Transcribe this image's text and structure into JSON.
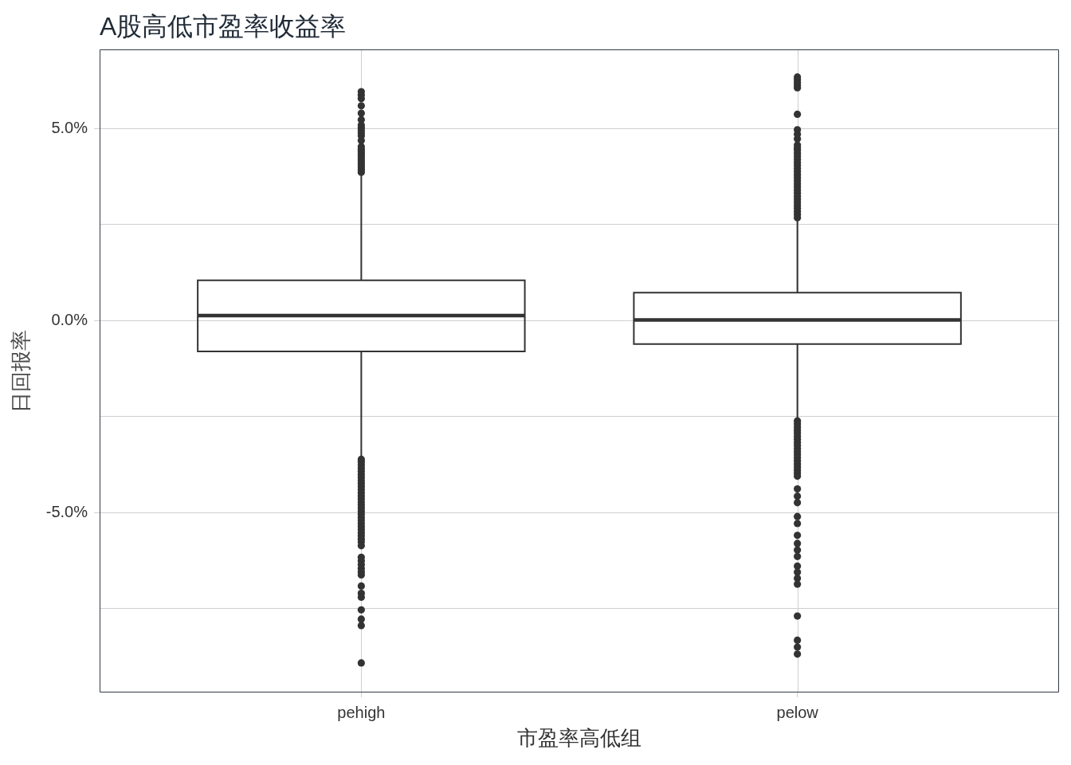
{
  "chart_data": {
    "type": "box",
    "title": "A股高低市盈率收益率",
    "xlabel": "市盈率高低组",
    "ylabel": "日回报率",
    "categories": [
      "pehigh",
      "pelow"
    ],
    "color": "#333333",
    "boxes": [
      {
        "low": -3.55,
        "q1": -0.8,
        "median": 0.13,
        "q3": 1.05,
        "high": 3.8,
        "outliers": [
          3.86,
          3.92,
          3.98,
          4.04,
          4.1,
          4.16,
          4.22,
          4.28,
          4.34,
          4.4,
          4.46,
          4.53,
          4.69,
          4.81,
          4.88,
          4.95,
          5.02,
          5.09,
          5.23,
          5.4,
          5.59,
          5.78,
          5.87,
          5.96,
          -3.61,
          -3.68,
          -3.76,
          -3.84,
          -3.92,
          -4.0,
          -4.08,
          -4.16,
          -4.24,
          -4.32,
          -4.4,
          -4.48,
          -4.56,
          -4.64,
          -4.72,
          -4.8,
          -4.88,
          -4.96,
          -5.04,
          -5.12,
          -5.2,
          -5.28,
          -5.36,
          -5.44,
          -5.52,
          -5.6,
          -5.68,
          -5.76,
          -5.86,
          -6.16,
          -6.25,
          -6.35,
          -6.45,
          -6.54,
          -6.62,
          -6.91,
          -7.1,
          -7.2,
          -7.53,
          -7.77,
          -7.94,
          -8.91
        ]
      },
      {
        "low": -2.55,
        "q1": -0.61,
        "median": 0.02,
        "q3": 0.73,
        "high": 2.64,
        "outliers": [
          2.68,
          2.76,
          2.84,
          2.92,
          3.0,
          3.08,
          3.16,
          3.24,
          3.32,
          3.4,
          3.48,
          3.56,
          3.64,
          3.72,
          3.8,
          3.88,
          3.96,
          4.04,
          4.12,
          4.2,
          4.28,
          4.36,
          4.44,
          4.5,
          4.57,
          4.73,
          4.85,
          4.97,
          5.37,
          6.06,
          6.13,
          6.2,
          6.27,
          6.34,
          -2.61,
          -2.69,
          -2.77,
          -2.85,
          -2.93,
          -3.01,
          -3.09,
          -3.17,
          -3.25,
          -3.33,
          -3.41,
          -3.49,
          -3.57,
          -3.65,
          -3.73,
          -3.81,
          -3.89,
          -3.97,
          -4.05,
          -4.38,
          -4.57,
          -4.74,
          -5.1,
          -5.28,
          -5.59,
          -5.8,
          -5.97,
          -6.14,
          -6.39,
          -6.55,
          -6.71,
          -6.86,
          -7.69,
          -8.32,
          -8.5,
          -8.68
        ]
      }
    ],
    "ylim": [
      -9.68,
      7.06
    ],
    "yticks": [
      {
        "value": -7.5,
        "label": null
      },
      {
        "value": -5,
        "label": "-5.0%"
      },
      {
        "value": -2.5,
        "label": null
      },
      {
        "value": 0,
        "label": "0.0%"
      },
      {
        "value": 2.5,
        "label": null
      },
      {
        "value": 5,
        "label": "5.0%"
      }
    ],
    "grid": true
  }
}
